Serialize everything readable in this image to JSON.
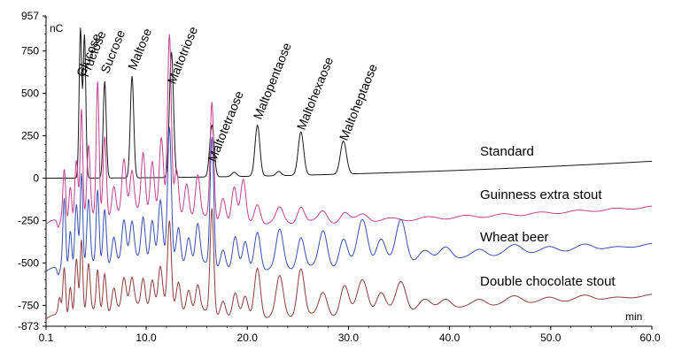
{
  "chart_data": {
    "type": "line",
    "y_unit": "nC",
    "x_unit": "min",
    "xlim": [
      0.1,
      60.0
    ],
    "ylim": [
      -873,
      957
    ],
    "x_tick_labels": [
      "0.1",
      "10.0",
      "20.0",
      "30.0",
      "40.0",
      "50.0",
      "60.0"
    ],
    "x_ticks": [
      0.1,
      10,
      20,
      30,
      40,
      50,
      60
    ],
    "y_tick_labels": [
      "957",
      "750",
      "500",
      "250",
      "0",
      "-250",
      "-500",
      "-750",
      "-873"
    ],
    "y_ticks": [
      957,
      750,
      500,
      250,
      0,
      -250,
      -500,
      -750,
      -873
    ],
    "peak_labels": [
      {
        "name": "Glucose",
        "x": 3.5
      },
      {
        "name": "Fructose",
        "x": 3.9
      },
      {
        "name": "Sucrose",
        "x": 5.9
      },
      {
        "name": "Maltose",
        "x": 8.6
      },
      {
        "name": "Maltotriose",
        "x": 12.5
      },
      {
        "name": "Maltotetraose",
        "x": 16.5
      },
      {
        "name": "Maltopentaose",
        "x": 21.0
      },
      {
        "name": "Maltohexaose",
        "x": 25.3
      },
      {
        "name": "Maltoheptaose",
        "x": 29.5
      }
    ],
    "series": [
      {
        "name": "Standard",
        "color": "#1a1a1a",
        "baseline": 0,
        "drift_end": 100,
        "peaks": [
          [
            3.5,
            880,
            0.13
          ],
          [
            3.9,
            840,
            0.13
          ],
          [
            5.9,
            570,
            0.15
          ],
          [
            8.6,
            600,
            0.17
          ],
          [
            12.5,
            740,
            0.2
          ],
          [
            16.5,
            305,
            0.22
          ],
          [
            21.0,
            300,
            0.24
          ],
          [
            25.3,
            255,
            0.27
          ],
          [
            29.5,
            195,
            0.3
          ],
          [
            18.7,
            25,
            0.25
          ],
          [
            23.1,
            25,
            0.25
          ]
        ]
      },
      {
        "name": "Guinness extra stout",
        "color": "#c0448e",
        "baseline": -280,
        "drift_end": 110,
        "peaks": [
          [
            1.9,
            320,
            0.14
          ],
          [
            2.5,
            230,
            0.14
          ],
          [
            3.1,
            380,
            0.16
          ],
          [
            3.6,
            660,
            0.13
          ],
          [
            4.3,
            420,
            0.16
          ],
          [
            5.2,
            790,
            0.14
          ],
          [
            5.9,
            480,
            0.16
          ],
          [
            6.8,
            180,
            0.2
          ],
          [
            7.8,
            300,
            0.2
          ],
          [
            8.6,
            220,
            0.2
          ],
          [
            9.7,
            350,
            0.2
          ],
          [
            10.6,
            300,
            0.2
          ],
          [
            11.5,
            420,
            0.2
          ],
          [
            12.3,
            1030,
            0.18
          ],
          [
            13.0,
            260,
            0.2
          ],
          [
            14.0,
            200,
            0.22
          ],
          [
            15.1,
            240,
            0.22
          ],
          [
            16.5,
            690,
            0.18
          ],
          [
            17.6,
            150,
            0.25
          ],
          [
            18.7,
            200,
            0.25
          ],
          [
            19.6,
            240,
            0.25
          ],
          [
            21.0,
            120,
            0.3
          ],
          [
            23.2,
            80,
            0.35
          ],
          [
            25.3,
            100,
            0.35
          ],
          [
            27.5,
            60,
            0.4
          ],
          [
            29.6,
            50,
            0.4
          ],
          [
            31.5,
            40,
            0.5
          ]
        ]
      },
      {
        "name": "Wheat beer",
        "color": "#3c4fb0",
        "baseline": -560,
        "drift_end": 170,
        "peaks": [
          [
            1.9,
            430,
            0.14
          ],
          [
            2.5,
            250,
            0.14
          ],
          [
            3.1,
            400,
            0.16
          ],
          [
            3.6,
            560,
            0.13
          ],
          [
            4.3,
            380,
            0.16
          ],
          [
            5.2,
            430,
            0.14
          ],
          [
            5.9,
            330,
            0.16
          ],
          [
            6.8,
            160,
            0.2
          ],
          [
            7.8,
            220,
            0.2
          ],
          [
            8.6,
            200,
            0.2
          ],
          [
            9.7,
            250,
            0.2
          ],
          [
            10.6,
            230,
            0.2
          ],
          [
            11.4,
            330,
            0.2
          ],
          [
            12.3,
            760,
            0.18
          ],
          [
            13.2,
            200,
            0.2
          ],
          [
            14.2,
            160,
            0.22
          ],
          [
            15.1,
            230,
            0.22
          ],
          [
            16.5,
            760,
            0.18
          ],
          [
            17.6,
            120,
            0.25
          ],
          [
            18.8,
            180,
            0.25
          ],
          [
            19.8,
            150,
            0.25
          ],
          [
            21.0,
            230,
            0.3
          ],
          [
            23.2,
            220,
            0.35
          ],
          [
            25.3,
            190,
            0.35
          ],
          [
            27.5,
            210,
            0.4
          ],
          [
            29.5,
            160,
            0.4
          ],
          [
            31.4,
            270,
            0.5
          ],
          [
            33.2,
            150,
            0.45
          ],
          [
            35.2,
            260,
            0.5
          ],
          [
            37.5,
            60,
            0.6
          ],
          [
            39.6,
            90,
            0.6
          ],
          [
            43.0,
            60,
            0.7
          ],
          [
            46.5,
            70,
            0.8
          ],
          [
            50.0,
            40,
            0.8
          ],
          [
            53.5,
            35,
            0.8
          ]
        ]
      },
      {
        "name": "Double chocolate stout",
        "color": "#8b3e3e",
        "baseline": -840,
        "drift_end": 150,
        "peaks": [
          [
            1.4,
            130,
            0.15
          ],
          [
            1.9,
            300,
            0.14
          ],
          [
            2.5,
            200,
            0.14
          ],
          [
            3.1,
            360,
            0.16
          ],
          [
            3.6,
            450,
            0.13
          ],
          [
            4.3,
            280,
            0.16
          ],
          [
            5.2,
            240,
            0.14
          ],
          [
            5.9,
            230,
            0.16
          ],
          [
            6.8,
            140,
            0.2
          ],
          [
            7.8,
            160,
            0.2
          ],
          [
            8.6,
            150,
            0.2
          ],
          [
            9.7,
            170,
            0.2
          ],
          [
            10.6,
            160,
            0.2
          ],
          [
            11.4,
            220,
            0.2
          ],
          [
            12.3,
            490,
            0.18
          ],
          [
            13.2,
            160,
            0.2
          ],
          [
            14.2,
            130,
            0.22
          ],
          [
            15.1,
            150,
            0.22
          ],
          [
            16.5,
            620,
            0.18
          ],
          [
            17.6,
            100,
            0.25
          ],
          [
            18.8,
            130,
            0.25
          ],
          [
            19.8,
            110,
            0.25
          ],
          [
            21.0,
            300,
            0.3
          ],
          [
            23.2,
            230,
            0.35
          ],
          [
            25.3,
            290,
            0.35
          ],
          [
            27.5,
            130,
            0.4
          ],
          [
            29.6,
            170,
            0.4
          ],
          [
            31.4,
            200,
            0.5
          ],
          [
            33.2,
            120,
            0.45
          ],
          [
            35.2,
            180,
            0.5
          ],
          [
            37.5,
            60,
            0.6
          ],
          [
            39.6,
            70,
            0.6
          ],
          [
            43.0,
            55,
            0.7
          ],
          [
            46.5,
            60,
            0.8
          ],
          [
            50.0,
            35,
            0.8
          ],
          [
            53.5,
            30,
            0.8
          ]
        ]
      }
    ]
  }
}
